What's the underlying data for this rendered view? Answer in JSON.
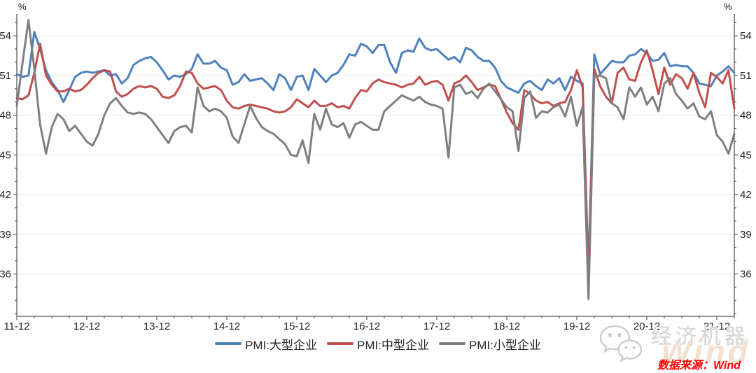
{
  "chart_data": {
    "type": "line",
    "title": "",
    "unit": "%",
    "x_tick_labels": [
      "11-12",
      "12-12",
      "13-12",
      "14-12",
      "15-12",
      "16-12",
      "17-12",
      "18-12",
      "19-12",
      "20-12",
      "21-12"
    ],
    "x_major_every": 12,
    "x_minor_every": 3,
    "y_ticks": [
      54,
      51,
      48,
      45,
      42,
      39,
      36
    ],
    "y_minor_step": 1,
    "ylim": [
      32.8,
      55.65
    ],
    "grid": "horizontal-only",
    "legend_position": "bottom-center",
    "axis_color": "#595959",
    "grid_color": "#ececec",
    "label_color": "#262626",
    "series": [
      {
        "id": "large",
        "name": "PMI:大型企业",
        "color": "#4f81bd",
        "values": [
          51.1,
          50.9,
          51.0,
          54.3,
          53.0,
          51.4,
          50.5,
          49.9,
          49.0,
          49.9,
          50.9,
          51.2,
          51.3,
          51.2,
          51.3,
          51.4,
          51.0,
          51.1,
          50.4,
          50.8,
          51.8,
          52.1,
          52.3,
          52.4,
          52.0,
          51.4,
          50.7,
          51.0,
          50.9,
          51.1,
          51.5,
          52.6,
          51.9,
          51.9,
          52.1,
          51.6,
          51.4,
          50.3,
          50.5,
          51.1,
          50.6,
          50.7,
          50.8,
          50.4,
          49.9,
          51.1,
          50.8,
          49.9,
          50.9,
          51.0,
          49.9,
          51.5,
          51.0,
          50.5,
          51.0,
          51.2,
          51.8,
          52.6,
          52.5,
          53.4,
          53.2,
          52.7,
          53.3,
          53.3,
          52.0,
          51.2,
          52.7,
          52.9,
          52.8,
          53.8,
          53.1,
          52.9,
          53.0,
          52.6,
          52.2,
          52.4,
          52.0,
          53.1,
          52.9,
          52.4,
          52.1,
          52.1,
          51.6,
          50.6,
          50.1,
          49.9,
          49.7,
          50.4,
          50.6,
          50.2,
          49.9,
          50.7,
          50.4,
          50.8,
          49.9,
          50.9,
          50.6,
          50.4,
          36.3,
          52.6,
          51.1,
          51.6,
          52.1,
          52.0,
          52.0,
          52.5,
          52.6,
          53.0,
          52.7,
          52.1,
          52.2,
          52.7,
          51.7,
          51.8,
          51.7,
          51.7,
          51.2,
          50.4,
          50.3,
          50.2,
          51.0,
          51.3,
          51.7,
          51.2
        ]
      },
      {
        "id": "medium",
        "name": "PMI:中型企业",
        "color": "#c0504d",
        "values": [
          49.3,
          49.2,
          49.5,
          51.2,
          53.4,
          51.0,
          50.3,
          49.8,
          49.8,
          50.0,
          49.8,
          49.9,
          50.3,
          50.8,
          51.2,
          51.4,
          51.3,
          49.8,
          49.4,
          49.6,
          50.0,
          50.2,
          50.1,
          50.2,
          50.0,
          49.4,
          49.3,
          49.5,
          50.2,
          51.3,
          51.2,
          50.4,
          50.0,
          50.1,
          50.2,
          49.9,
          49.1,
          48.6,
          48.5,
          48.7,
          48.8,
          48.7,
          48.6,
          48.5,
          48.3,
          48.2,
          48.3,
          48.6,
          49.2,
          48.9,
          48.6,
          49.1,
          48.7,
          48.7,
          48.9,
          48.6,
          48.7,
          48.5,
          49.3,
          49.9,
          49.8,
          50.4,
          50.7,
          50.5,
          50.4,
          50.3,
          50.1,
          50.3,
          50.4,
          50.9,
          50.3,
          50.5,
          50.6,
          50.3,
          49.1,
          50.4,
          50.6,
          51.0,
          50.5,
          49.9,
          50.1,
          50.3,
          50.2,
          49.2,
          48.2,
          47.4,
          46.9,
          49.9,
          49.6,
          49.1,
          48.9,
          49.0,
          48.7,
          48.9,
          49.0,
          49.9,
          51.4,
          50.1,
          35.5,
          51.5,
          50.2,
          49.4,
          48.9,
          51.2,
          51.6,
          50.7,
          50.6,
          52.0,
          52.9,
          51.4,
          49.6,
          51.6,
          50.3,
          51.1,
          50.8,
          50.0,
          51.2,
          49.7,
          48.6,
          51.2,
          50.9,
          50.4,
          51.4,
          48.5
        ]
      },
      {
        "id": "small",
        "name": "PMI:小型企业",
        "color": "#7f7f7f",
        "values": [
          48.7,
          52.0,
          55.2,
          51.5,
          47.3,
          45.1,
          47.1,
          48.1,
          47.7,
          46.8,
          47.2,
          46.6,
          46.0,
          45.7,
          46.6,
          48.0,
          48.9,
          49.3,
          48.7,
          48.2,
          48.1,
          48.2,
          48.1,
          47.7,
          47.1,
          46.5,
          45.9,
          46.8,
          47.1,
          47.2,
          46.7,
          50.1,
          48.7,
          48.3,
          48.5,
          48.3,
          47.8,
          46.4,
          45.9,
          47.3,
          48.7,
          47.8,
          47.1,
          46.8,
          46.6,
          46.2,
          45.8,
          45.0,
          44.9,
          46.1,
          44.4,
          48.1,
          46.9,
          48.5,
          47.3,
          47.1,
          47.4,
          46.3,
          47.3,
          47.5,
          47.2,
          46.9,
          46.9,
          48.3,
          48.7,
          49.1,
          49.5,
          49.3,
          49.1,
          49.4,
          49.0,
          48.8,
          48.7,
          48.5,
          44.8,
          50.1,
          50.3,
          49.6,
          49.8,
          49.3,
          50.0,
          50.4,
          49.8,
          49.2,
          48.6,
          48.3,
          45.3,
          49.3,
          49.8,
          47.8,
          48.3,
          48.2,
          48.6,
          48.8,
          47.9,
          49.4,
          47.2,
          48.6,
          34.1,
          50.9,
          51.0,
          50.8,
          48.9,
          48.6,
          47.7,
          50.1,
          49.4,
          50.1,
          48.8,
          49.4,
          48.3,
          50.4,
          50.8,
          49.6,
          49.1,
          48.5,
          48.9,
          47.9,
          47.7,
          48.3,
          46.5,
          46.0,
          45.1,
          46.6
        ]
      }
    ]
  },
  "watermark": {
    "brand": "经济机器",
    "background_text": "Wind",
    "icon": "wechat-logo"
  },
  "source": {
    "label": "数据来源：Wind",
    "color": "#ff0000"
  }
}
